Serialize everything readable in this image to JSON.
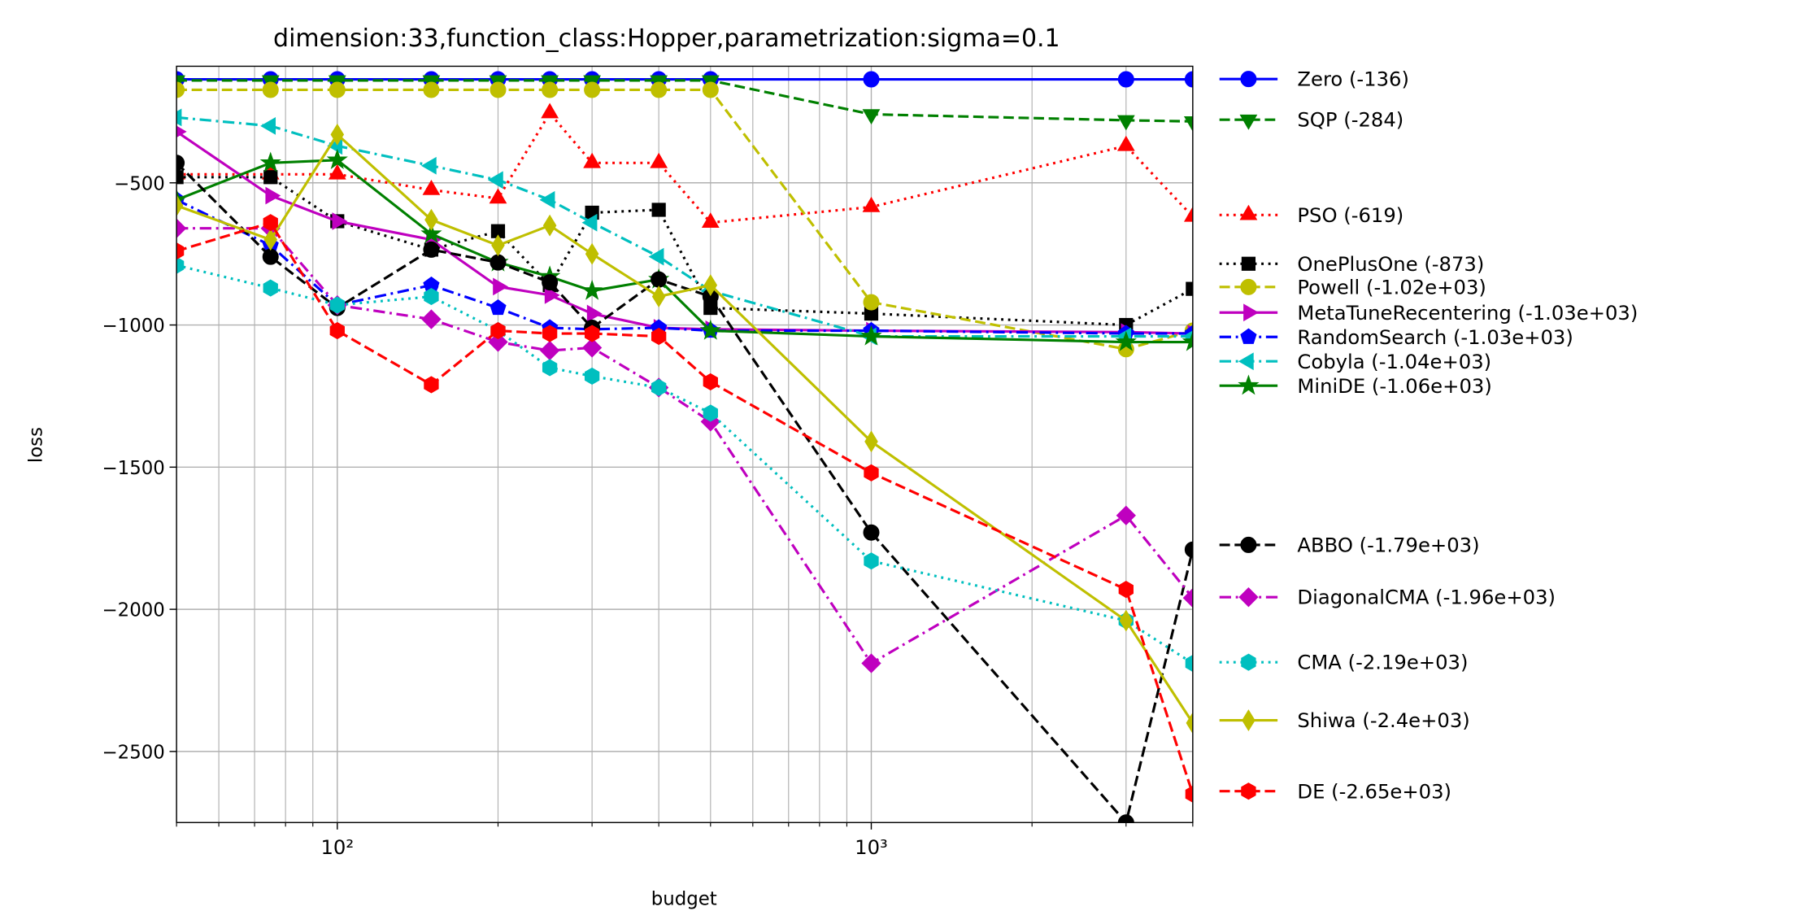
{
  "chart_data": {
    "type": "line",
    "title": "dimension:33,function_class:Hopper,parametrization:sigma=0.1",
    "x_label": "budget",
    "y_label": "loss",
    "x": [
      50,
      75,
      100,
      150,
      200,
      250,
      300,
      400,
      500,
      1000,
      3000,
      4000
    ],
    "xlim": [
      50,
      4000
    ],
    "x_log": true,
    "xticks": [
      {
        "value": 100,
        "label": "10²"
      },
      {
        "value": 1000,
        "label": "10³"
      }
    ],
    "xminor": [
      50,
      60,
      70,
      80,
      90,
      200,
      300,
      400,
      500,
      600,
      700,
      800,
      900,
      2000,
      3000,
      4000
    ],
    "ylim": [
      -2750,
      -90
    ],
    "yticks": [
      {
        "value": -500,
        "label": "−500"
      },
      {
        "value": -1000,
        "label": "−1000"
      },
      {
        "value": -1500,
        "label": "−1500"
      },
      {
        "value": -2000,
        "label": "−2000"
      },
      {
        "value": -2500,
        "label": "−2500"
      }
    ],
    "grid": true,
    "legend": "outside-right",
    "series": [
      {
        "name": "Zero (-136)",
        "color": "#0000ff",
        "marker": "o",
        "dash": "solid",
        "values": [
          -136,
          -136,
          -136,
          -136,
          -136,
          -136,
          -136,
          -136,
          -136,
          -136,
          -136,
          -136
        ]
      },
      {
        "name": "SQP (-284)",
        "color": "#008000",
        "marker": "v",
        "dash": "dashed",
        "values": [
          -140,
          -140,
          -140,
          -140,
          -140,
          -140,
          -140,
          -140,
          -140,
          -259,
          -280,
          -284
        ]
      },
      {
        "name": "PSO (-619)",
        "color": "#ff0000",
        "marker": "^",
        "dash": "dotted",
        "values": [
          -470,
          -470,
          -470,
          -525,
          -555,
          -255,
          -430,
          -430,
          -640,
          -585,
          -370,
          -619
        ]
      },
      {
        "name": "OnePlusOne (-873)",
        "color": "#000000",
        "marker": "s",
        "dash": "dotted",
        "values": [
          -480,
          -480,
          -635,
          -735,
          -670,
          -860,
          -605,
          -595,
          -940,
          -960,
          -1000,
          -873
        ]
      },
      {
        "name": "Powell (-1.02e+03)",
        "color": "#bfbf00",
        "marker": "o",
        "dash": "dashed",
        "values": [
          -173,
          -173,
          -173,
          -173,
          -173,
          -173,
          -173,
          -173,
          -173,
          -920,
          -1085,
          -1020
        ]
      },
      {
        "name": "MetaTuneRecentering (-1.03e+03)",
        "color": "#bf00bf",
        "marker": ">",
        "dash": "solid",
        "values": [
          -320,
          -545,
          -635,
          -700,
          -865,
          -895,
          -960,
          -1010,
          -1015,
          -1020,
          -1025,
          -1030
        ]
      },
      {
        "name": "RandomSearch (-1.03e+03)",
        "color": "#0000ff",
        "marker": "p",
        "dash": "dashdot",
        "values": [
          -560,
          -720,
          -930,
          -860,
          -940,
          -1010,
          -1015,
          -1010,
          -1020,
          -1020,
          -1030,
          -1030
        ]
      },
      {
        "name": "Cobyla (-1.04e+03)",
        "color": "#00bfbf",
        "marker": "<",
        "dash": "dashdot",
        "values": [
          -270,
          -300,
          -370,
          -440,
          -490,
          -560,
          -640,
          -760,
          -880,
          -1040,
          -1040,
          -1040
        ]
      },
      {
        "name": "MiniDE (-1.06e+03)",
        "color": "#008000",
        "marker": "*",
        "dash": "solid",
        "values": [
          -560,
          -430,
          -420,
          -680,
          -780,
          -830,
          -880,
          -840,
          -1020,
          -1040,
          -1060,
          -1060
        ]
      },
      {
        "name": "ABBO (-1.79e+03)",
        "color": "#000000",
        "marker": "o",
        "dash": "dashed",
        "values": [
          -430,
          -760,
          -940,
          -735,
          -780,
          -850,
          -1010,
          -840,
          -900,
          -1730,
          -2750,
          -1790
        ]
      },
      {
        "name": "DiagonalCMA (-1.96e+03)",
        "color": "#bf00bf",
        "marker": "D",
        "dash": "dashdot",
        "values": [
          -660,
          -660,
          -930,
          -980,
          -1060,
          -1090,
          -1080,
          -1220,
          -1340,
          -2190,
          -1670,
          -1960
        ]
      },
      {
        "name": "CMA (-2.19e+03)",
        "color": "#00bfbf",
        "marker": "h",
        "dash": "dotted",
        "values": [
          -790,
          -870,
          -930,
          -900,
          -1020,
          -1150,
          -1180,
          -1220,
          -1310,
          -1830,
          -2040,
          -2190
        ]
      },
      {
        "name": "Shiwa (-2.4e+03)",
        "color": "#bfbf00",
        "marker": "d",
        "dash": "solid",
        "values": [
          -580,
          -700,
          -330,
          -630,
          -720,
          -650,
          -750,
          -900,
          -860,
          -1410,
          -2040,
          -2400
        ]
      },
      {
        "name": "DE (-2.65e+03)",
        "color": "#ff0000",
        "marker": "h",
        "dash": "dashed",
        "values": [
          -740,
          -640,
          -1020,
          -1210,
          -1020,
          -1030,
          -1030,
          -1040,
          -1200,
          -1520,
          -1930,
          -2650
        ]
      }
    ]
  }
}
